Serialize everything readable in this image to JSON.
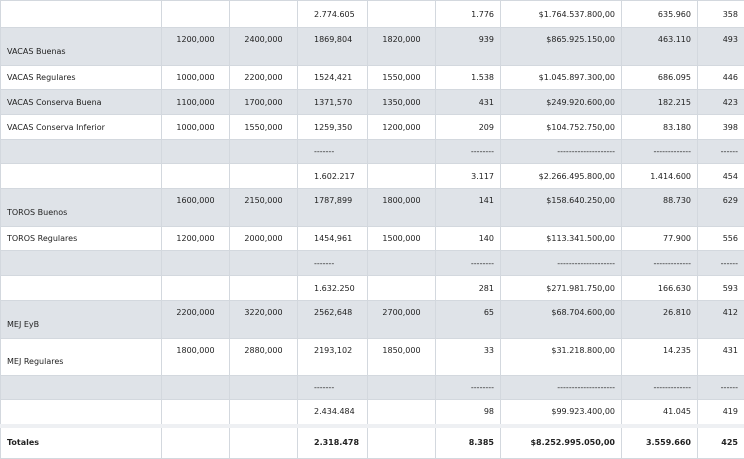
{
  "table": {
    "rows": [
      [
        null,
        null,
        null,
        "2.774.605",
        null,
        "1.776",
        "$1.764.537.800,00",
        "635.960",
        "358"
      ],
      [
        "VACAS Buenas",
        "1200,000",
        "2400,000",
        "1869,804",
        "1820,000",
        "939",
        "$865.925.150,00",
        "463.110",
        "493"
      ],
      [
        "VACAS Regulares",
        "1000,000",
        "2200,000",
        "1524,421",
        "1550,000",
        "1.538",
        "$1.045.897.300,00",
        "686.095",
        "446"
      ],
      [
        "VACAS Conserva Buena",
        "1100,000",
        "1700,000",
        "1371,570",
        "1350,000",
        "431",
        "$249.920.600,00",
        "182.215",
        "423"
      ],
      [
        "VACAS Conserva Inferior",
        "1000,000",
        "1550,000",
        "1259,350",
        "1200,000",
        "209",
        "$104.752.750,00",
        "83.180",
        "398"
      ],
      [
        null,
        null,
        null,
        "-------",
        null,
        "--------",
        "--------------------",
        "-------------",
        "------"
      ],
      [
        null,
        null,
        null,
        "1.602.217",
        null,
        "3.117",
        "$2.266.495.800,00",
        "1.414.600",
        "454"
      ],
      [
        "TOROS Buenos",
        "1600,000",
        "2150,000",
        "1787,899",
        "1800,000",
        "141",
        "$158.640.250,00",
        "88.730",
        "629"
      ],
      [
        "TOROS Regulares",
        "1200,000",
        "2000,000",
        "1454,961",
        "1500,000",
        "140",
        "$113.341.500,00",
        "77.900",
        "556"
      ],
      [
        null,
        null,
        null,
        "-------",
        null,
        "--------",
        "--------------------",
        "-------------",
        "------"
      ],
      [
        null,
        null,
        null,
        "1.632.250",
        null,
        "281",
        "$271.981.750,00",
        "166.630",
        "593"
      ],
      [
        "MEJ EyB",
        "2200,000",
        "3220,000",
        "2562,648",
        "2700,000",
        "65",
        "$68.704.600,00",
        "26.810",
        "412"
      ],
      [
        "MEJ Regulares",
        "1800,000",
        "2880,000",
        "2193,102",
        "1850,000",
        "33",
        "$31.218.800,00",
        "14.235",
        "431"
      ],
      [
        null,
        null,
        null,
        "-------",
        null,
        "--------",
        "--------------------",
        "-------------",
        "------"
      ],
      [
        null,
        null,
        null,
        "2.434.484",
        null,
        "98",
        "$99.923.400,00",
        "41.045",
        "419"
      ],
      [
        "Totales",
        null,
        null,
        "2.318.478",
        null,
        "8.385",
        "$8.252.995.050,00",
        "3.559.660",
        "425"
      ]
    ]
  }
}
